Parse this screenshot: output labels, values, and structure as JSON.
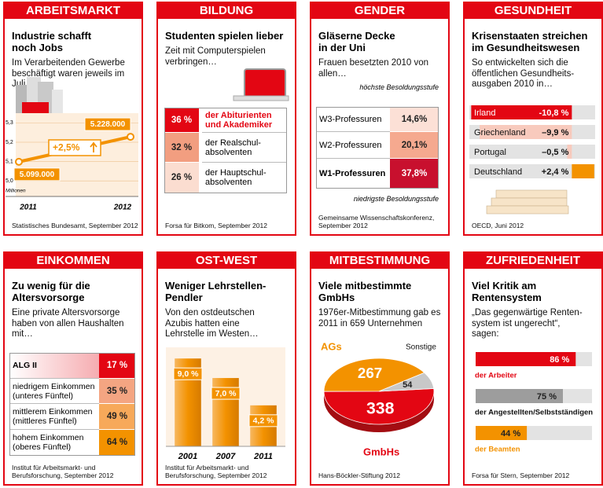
{
  "chart_data": [
    {
      "type": "line",
      "header": "ARBEITSMARKT",
      "title": "Industrie schafft noch Jobs",
      "subtitle": "Im Verarbeitenden Gewerbe beschäftigt waren jeweils im Juli…",
      "categories": [
        "2011",
        "2012"
      ],
      "values": [
        5.099,
        5.228
      ],
      "value_labels": [
        "5.099.000",
        "5.228.000"
      ],
      "color": "#f39200",
      "ylim": [
        4.92,
        5.35
      ],
      "yticks": [
        {
          "value": 5.0,
          "label": "5,0"
        },
        {
          "value": 5.1,
          "label": "5,1"
        },
        {
          "value": 5.2,
          "label": "5,2"
        },
        {
          "value": 5.3,
          "label": "5,3"
        }
      ],
      "grid": true,
      "ylabel": "Millionen",
      "annotation": "+2,5%",
      "source": "Statistisches Bundesamt, September 2012"
    },
    {
      "type": "table",
      "header": "BILDUNG",
      "title": "Studenten spielen lieber",
      "subtitle": "Zeit mit Computerspielen verbringen…",
      "categories": [
        "der Abiturienten und Akademiker",
        "der Realschul­absolventen",
        "der Hauptschul­absolventen"
      ],
      "values": [
        36,
        32,
        26
      ],
      "value_labels": [
        "36 %",
        "32 %",
        "26 %"
      ],
      "colors": [
        "#e30613",
        "#f29e80",
        "#fbddd0"
      ],
      "source": "Forsa für Bitkom, September 2012"
    },
    {
      "type": "table",
      "header": "GENDER",
      "title": "Gläserne Decke in der Uni",
      "subtitle": "Frauen besetzten 2010 von allen…",
      "top_note": "höchste Besoldungsstufe",
      "bottom_note": "niedrigste Besoldungsstufe",
      "categories": [
        "W3-Professuren",
        "W2-Professuren",
        "W1-Professuren"
      ],
      "values": [
        14.6,
        20.1,
        37.8
      ],
      "value_labels": [
        "14,6%",
        "20,1%",
        "37,8%"
      ],
      "colors": [
        "#fce0d6",
        "#f5a98f",
        "#c8102e"
      ],
      "source": "Gemeinsame Wissenschaftskonferenz, September 2012"
    },
    {
      "type": "bar",
      "orientation": "horizontal",
      "header": "GESUNDHEIT",
      "title": "Krisenstaaten streichen im Gesundheitswesen",
      "subtitle": "So entwickelten sich die öffentlichen Gesundheits­ausgaben 2010 in…",
      "categories": [
        "Irland",
        "Griechenland",
        "Portugal",
        "Deutschland"
      ],
      "values": [
        -10.8,
        -9.9,
        -0.5,
        2.4
      ],
      "value_labels": [
        "-10,8 %",
        "–9,9 %",
        "–0,5 %",
        "+2,4 %"
      ],
      "colors": [
        "#e30613",
        "#f8cabd",
        "#f8cabd",
        "#f39200"
      ],
      "xlim": [
        -11,
        2.5
      ],
      "source": "OECD, Juni 2012"
    },
    {
      "type": "table",
      "header": "EINKOMMEN",
      "title": "Zu wenig für die Altersvorsorge",
      "subtitle": "Eine private Altersvorsorge haben von allen Haushalten mit…",
      "categories": [
        "ALG II",
        "niedrigem Einkommen (unteres Fünftel)",
        "mittlerem Einkommen (mittleres Fünftel)",
        "hohem Einkommen (oberes Fünftel)"
      ],
      "values": [
        17,
        35,
        49,
        64
      ],
      "value_labels": [
        "17 %",
        "35 %",
        "49 %",
        "64 %"
      ],
      "colors": [
        "#e30613",
        "#f4a582",
        "#f7a95a",
        "#f39200"
      ],
      "source": "Institut für Arbeitsmarkt- und Berufsforschung, September 2012"
    },
    {
      "type": "bar",
      "header": "OST-WEST",
      "title": "Weniger Lehrstellen-Pendler",
      "subtitle": "Von den ostdeutschen Azubis hatten eine Lehrstelle im Westen…",
      "categories": [
        "2001",
        "2007",
        "2011"
      ],
      "values": [
        9.0,
        7.0,
        4.2
      ],
      "value_labels": [
        "9,0 %",
        "7,0 %",
        "4,2 %"
      ],
      "color": "#f39200",
      "ylim": [
        0,
        9.5
      ],
      "source": "Institut für Arbeitsmarkt- und Berufsforschung, September 2012"
    },
    {
      "type": "pie",
      "header": "MITBESTIMMUNG",
      "title": "Viele mitbestimmte GmbHs",
      "subtitle": "1976er-Mitbestimmung gab es 2011 in 659 Unternehmen",
      "categories": [
        "AGs",
        "GmbHs",
        "Sonstige"
      ],
      "values": [
        267,
        338,
        54
      ],
      "colors": [
        "#f39200",
        "#e30613",
        "#c8c8c8"
      ],
      "source": "Hans-Böckler-Stiftung 2012"
    },
    {
      "type": "bar",
      "orientation": "horizontal",
      "header": "ZUFRIEDENHEIT",
      "title": "Viel Kritik am Rentensystem",
      "subtitle": "„Das gegenwärtige Renten­system ist ungerecht“, sagen:",
      "categories": [
        "der Arbeiter",
        "der Angestellten/Selbstständigen",
        "der Beamten"
      ],
      "values": [
        86,
        75,
        44
      ],
      "value_labels": [
        "86 %",
        "75 %",
        "44 %"
      ],
      "colors": [
        "#e30613",
        "#9d9d9d",
        "#f39200"
      ],
      "xlim": [
        0,
        100
      ],
      "source": "Forsa für Stern, September 2012"
    }
  ]
}
